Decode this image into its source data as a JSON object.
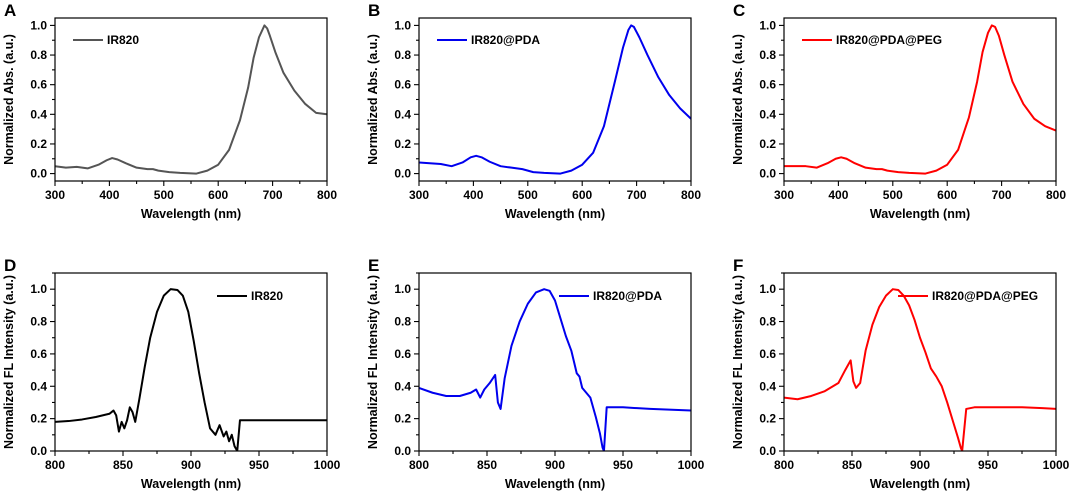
{
  "chart_data": [
    {
      "panel": "A",
      "type": "line",
      "xlabel": "Wavelength (nm)",
      "ylabel": "Normalized Abs. (a.u.)",
      "xlim": [
        300,
        800
      ],
      "ylim": [
        -0.05,
        1.05
      ],
      "xticks": [
        "300",
        "400",
        "500",
        "600",
        "700",
        "800"
      ],
      "yticks": [
        "0.0",
        "0.2",
        "0.4",
        "0.6",
        "0.8",
        "1.0"
      ],
      "legend": "top-left",
      "series": [
        {
          "name": "IR820",
          "color": "#555555",
          "x": [
            300,
            320,
            340,
            360,
            380,
            395,
            405,
            415,
            430,
            450,
            470,
            480,
            490,
            510,
            530,
            560,
            580,
            600,
            620,
            640,
            655,
            665,
            675,
            685,
            690,
            695,
            705,
            720,
            740,
            760,
            780,
            800
          ],
          "y": [
            0.05,
            0.04,
            0.045,
            0.035,
            0.06,
            0.09,
            0.105,
            0.095,
            0.07,
            0.04,
            0.03,
            0.03,
            0.02,
            0.01,
            0.005,
            0.0,
            0.02,
            0.06,
            0.16,
            0.36,
            0.58,
            0.78,
            0.92,
            1.0,
            0.98,
            0.93,
            0.82,
            0.68,
            0.56,
            0.47,
            0.41,
            0.4
          ]
        }
      ]
    },
    {
      "panel": "B",
      "type": "line",
      "xlabel": "Wavelength (nm)",
      "ylabel": "Normalized Abs. (a.u.)",
      "xlim": [
        300,
        800
      ],
      "ylim": [
        -0.05,
        1.05
      ],
      "xticks": [
        "300",
        "400",
        "500",
        "600",
        "700",
        "800"
      ],
      "yticks": [
        "0.0",
        "0.2",
        "0.4",
        "0.6",
        "0.8",
        "1.0"
      ],
      "legend": "top-left",
      "series": [
        {
          "name": "IR820@PDA",
          "color": "#0000ee",
          "x": [
            300,
            320,
            340,
            360,
            380,
            395,
            405,
            415,
            430,
            450,
            470,
            490,
            510,
            530,
            560,
            580,
            600,
            620,
            640,
            660,
            675,
            685,
            690,
            695,
            705,
            720,
            740,
            760,
            780,
            800
          ],
          "y": [
            0.075,
            0.07,
            0.065,
            0.05,
            0.075,
            0.11,
            0.12,
            0.11,
            0.08,
            0.05,
            0.04,
            0.03,
            0.01,
            0.005,
            0.0,
            0.02,
            0.06,
            0.14,
            0.32,
            0.62,
            0.85,
            0.97,
            1.0,
            0.99,
            0.92,
            0.8,
            0.65,
            0.53,
            0.44,
            0.37
          ]
        }
      ]
    },
    {
      "panel": "C",
      "type": "line",
      "xlabel": "Wavelength (nm)",
      "ylabel": "Normalized Abs. (a.u.)",
      "xlim": [
        300,
        800
      ],
      "ylim": [
        -0.05,
        1.05
      ],
      "xticks": [
        "300",
        "400",
        "500",
        "600",
        "700",
        "800"
      ],
      "yticks": [
        "0.0",
        "0.2",
        "0.4",
        "0.6",
        "0.8",
        "1.0"
      ],
      "legend": "top-left",
      "series": [
        {
          "name": "IR820@PDA@PEG",
          "color": "#ff0000",
          "x": [
            300,
            320,
            340,
            360,
            380,
            395,
            405,
            415,
            430,
            450,
            470,
            480,
            490,
            510,
            530,
            560,
            580,
            600,
            620,
            640,
            655,
            665,
            675,
            682,
            688,
            695,
            705,
            720,
            740,
            760,
            780,
            800
          ],
          "y": [
            0.05,
            0.05,
            0.05,
            0.04,
            0.07,
            0.1,
            0.11,
            0.1,
            0.07,
            0.04,
            0.03,
            0.03,
            0.02,
            0.01,
            0.005,
            0.0,
            0.02,
            0.06,
            0.16,
            0.38,
            0.62,
            0.82,
            0.95,
            1.0,
            0.99,
            0.93,
            0.8,
            0.62,
            0.47,
            0.37,
            0.32,
            0.29
          ]
        }
      ]
    },
    {
      "panel": "D",
      "type": "line",
      "xlabel": "Wavelength (nm)",
      "ylabel": "Normalized FL Intensity (a.u.)",
      "xlim": [
        800,
        1000
      ],
      "ylim": [
        0.0,
        1.1
      ],
      "xticks": [
        "800",
        "850",
        "900",
        "950",
        "1000"
      ],
      "yticks": [
        "0.0",
        "0.2",
        "0.4",
        "0.6",
        "0.8",
        "1.0"
      ],
      "legend": "top-right",
      "series": [
        {
          "name": "IR820",
          "color": "#000000",
          "x": [
            800,
            810,
            820,
            830,
            840,
            843,
            845,
            847,
            849,
            851,
            853,
            855,
            857,
            859,
            862,
            866,
            870,
            875,
            880,
            885,
            890,
            894,
            898,
            902,
            906,
            910,
            914,
            918,
            921,
            924,
            926,
            928,
            930,
            932,
            934,
            936,
            937,
            940,
            950,
            970,
            1000
          ],
          "y": [
            0.18,
            0.185,
            0.195,
            0.21,
            0.23,
            0.25,
            0.22,
            0.12,
            0.18,
            0.14,
            0.19,
            0.27,
            0.24,
            0.18,
            0.32,
            0.52,
            0.7,
            0.86,
            0.96,
            1.0,
            0.995,
            0.96,
            0.86,
            0.68,
            0.48,
            0.3,
            0.14,
            0.1,
            0.16,
            0.09,
            0.12,
            0.06,
            0.1,
            0.03,
            0.0,
            0.19,
            0.19,
            0.19,
            0.19,
            0.19,
            0.19
          ]
        }
      ]
    },
    {
      "panel": "E",
      "type": "line",
      "xlabel": "Wavelength (nm)",
      "ylabel": "Normalized FL Intensity (a.u.)",
      "xlim": [
        800,
        1000
      ],
      "ylim": [
        0.0,
        1.1
      ],
      "xticks": [
        "800",
        "850",
        "900",
        "950",
        "1000"
      ],
      "yticks": [
        "0.0",
        "0.2",
        "0.4",
        "0.6",
        "0.8",
        "1.0"
      ],
      "legend": "top-right",
      "series": [
        {
          "name": "IR820@PDA",
          "color": "#0000ee",
          "x": [
            800,
            810,
            820,
            830,
            838,
            842,
            845,
            848,
            852,
            856,
            858,
            860,
            863,
            868,
            874,
            880,
            886,
            892,
            896,
            900,
            904,
            908,
            912,
            916,
            918,
            920,
            923,
            926,
            930,
            933,
            935,
            936,
            938,
            950,
            970,
            1000
          ],
          "y": [
            0.39,
            0.36,
            0.34,
            0.34,
            0.36,
            0.38,
            0.33,
            0.38,
            0.42,
            0.47,
            0.3,
            0.26,
            0.45,
            0.65,
            0.8,
            0.91,
            0.98,
            1.0,
            0.99,
            0.93,
            0.82,
            0.71,
            0.62,
            0.48,
            0.46,
            0.39,
            0.36,
            0.33,
            0.21,
            0.11,
            0.02,
            0.0,
            0.27,
            0.27,
            0.26,
            0.25
          ]
        }
      ]
    },
    {
      "panel": "F",
      "type": "line",
      "xlabel": "Wavelength (nm)",
      "ylabel": "Normalized FL Intensity (a.u.)",
      "xlim": [
        800,
        1000
      ],
      "ylim": [
        0.0,
        1.1
      ],
      "xticks": [
        "800",
        "850",
        "900",
        "950",
        "1000"
      ],
      "yticks": [
        "0.0",
        "0.2",
        "0.4",
        "0.6",
        "0.8",
        "1.0"
      ],
      "legend": "top-right",
      "series": [
        {
          "name": "IR820@PDA@PEG",
          "color": "#ff0000",
          "x": [
            800,
            810,
            820,
            830,
            840,
            845,
            849,
            851,
            853,
            856,
            860,
            865,
            870,
            875,
            880,
            884,
            888,
            892,
            896,
            900,
            904,
            908,
            912,
            916,
            920,
            924,
            928,
            930,
            931,
            934,
            940,
            950,
            960,
            975,
            990,
            1000
          ],
          "y": [
            0.33,
            0.32,
            0.34,
            0.37,
            0.42,
            0.5,
            0.56,
            0.43,
            0.39,
            0.42,
            0.62,
            0.78,
            0.89,
            0.96,
            1.0,
            0.995,
            0.96,
            0.9,
            0.81,
            0.7,
            0.61,
            0.51,
            0.46,
            0.4,
            0.3,
            0.19,
            0.08,
            0.02,
            0.0,
            0.26,
            0.27,
            0.27,
            0.27,
            0.27,
            0.265,
            0.26
          ]
        }
      ]
    }
  ]
}
